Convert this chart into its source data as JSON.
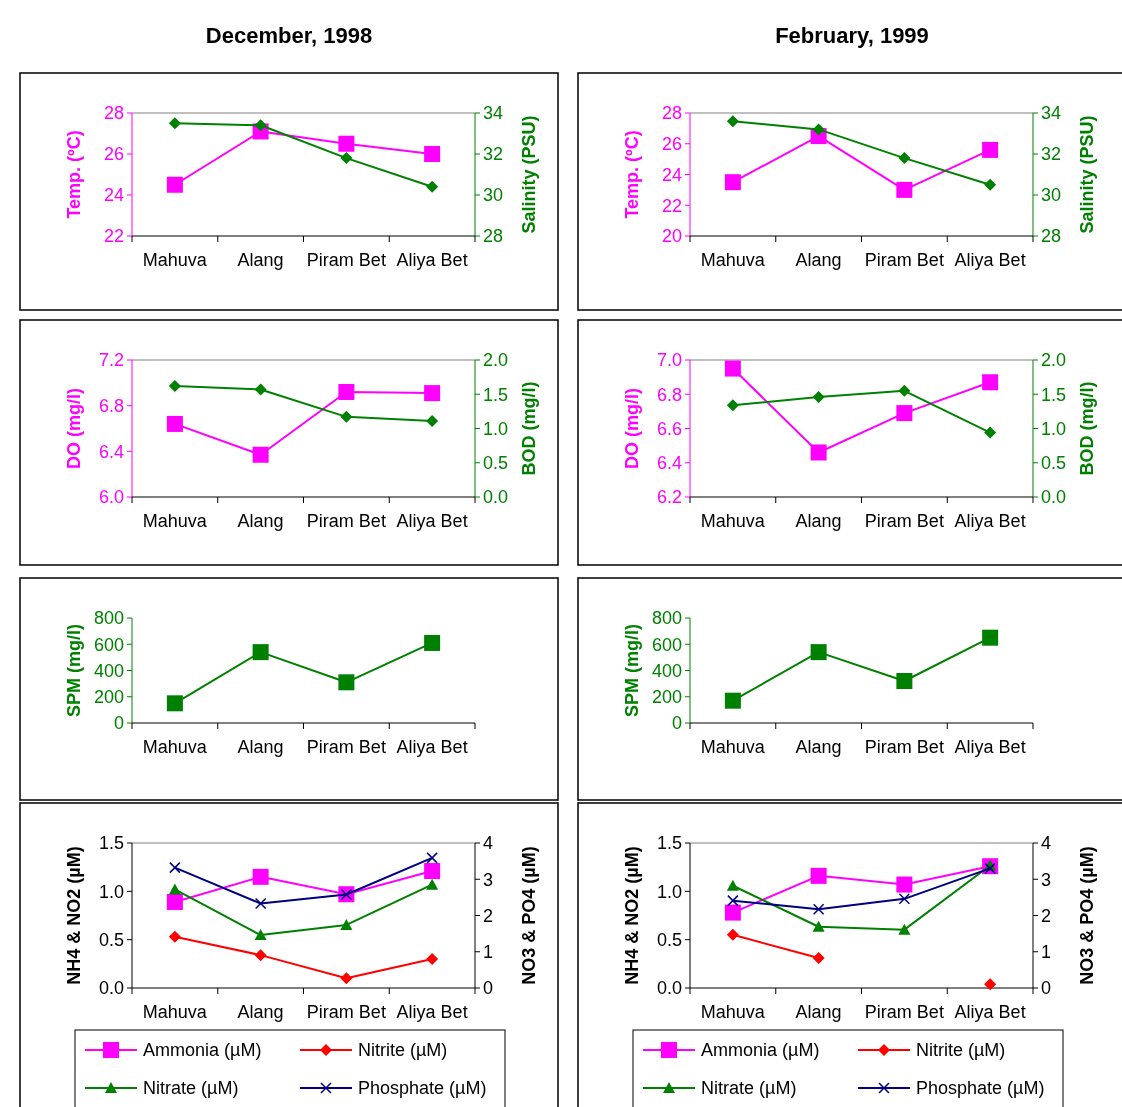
{
  "chart_data": [
    {
      "type": "line",
      "title": "December, 1998",
      "categories": [
        "Mahuva",
        "Alang",
        "Piram Bet",
        "Aliya Bet"
      ],
      "ylabel": "Temp. (ºC)",
      "y2label": "Salinity (PSU)",
      "ylim": [
        22,
        28
      ],
      "yticks": [
        22,
        24,
        26,
        28
      ],
      "y2lim": [
        28,
        34
      ],
      "y2ticks": [
        28,
        30,
        32,
        34
      ],
      "series": [
        {
          "color": "#ff00ff",
          "marker": "square",
          "values": [
            24.5,
            27.1,
            26.5,
            26.0
          ]
        },
        {
          "color": "#008000",
          "marker": "diamond",
          "axis": "y2",
          "values": [
            33.5,
            33.4,
            31.8,
            30.4
          ]
        }
      ]
    },
    {
      "type": "line",
      "title": "February, 1999",
      "categories": [
        "Mahuva",
        "Alang",
        "Piram Bet",
        "Aliya Bet"
      ],
      "ylabel": "Temp. (ºC)",
      "y2label": "Salinity (PSU)",
      "ylim": [
        20,
        28
      ],
      "yticks": [
        20,
        22,
        24,
        26,
        28
      ],
      "y2lim": [
        28,
        34
      ],
      "y2ticks": [
        28,
        30,
        32,
        34
      ],
      "series": [
        {
          "color": "#ff00ff",
          "marker": "square",
          "values": [
            23.5,
            26.5,
            23.0,
            25.6
          ]
        },
        {
          "color": "#008000",
          "marker": "diamond",
          "axis": "y2",
          "values": [
            33.6,
            33.2,
            31.8,
            30.5
          ]
        }
      ]
    },
    {
      "type": "line",
      "categories": [
        "Mahuva",
        "Alang",
        "Piram Bet",
        "Aliya Bet"
      ],
      "ylabel": "DO (mg/l)",
      "y2label": "BOD (mg/l)",
      "ylim": [
        6.0,
        7.2
      ],
      "yticks": [
        {
          "value": 6,
          "label": "6.0"
        },
        6.4,
        6.8,
        7.2
      ],
      "y2lim": [
        0,
        2
      ],
      "y2ticks": [
        {
          "value": 0,
          "label": "0.0"
        },
        0.5,
        {
          "value": 1,
          "label": "1.0"
        },
        1.5,
        {
          "value": 2,
          "label": "2.0"
        }
      ],
      "series": [
        {
          "color": "#ff00ff",
          "marker": "square",
          "values": [
            6.64,
            6.37,
            6.92,
            6.91
          ]
        },
        {
          "color": "#008000",
          "marker": "diamond",
          "axis": "y2",
          "values": [
            1.62,
            1.57,
            1.17,
            1.11
          ]
        }
      ]
    },
    {
      "type": "line",
      "categories": [
        "Mahuva",
        "Alang",
        "Piram Bet",
        "Aliya Bet"
      ],
      "ylabel": "DO (mg/l)",
      "y2label": "BOD (mg/l)",
      "ylim": [
        6.2,
        7.0
      ],
      "yticks": [
        6.2,
        6.4,
        6.6,
        6.8,
        {
          "value": 7,
          "label": "7.0"
        }
      ],
      "y2lim": [
        0,
        2
      ],
      "y2ticks": [
        {
          "value": 0,
          "label": "0.0"
        },
        0.5,
        {
          "value": 1,
          "label": "1.0"
        },
        1.5,
        {
          "value": 2,
          "label": "2.0"
        }
      ],
      "series": [
        {
          "color": "#ff00ff",
          "marker": "square",
          "values": [
            6.95,
            6.46,
            6.69,
            6.87
          ]
        },
        {
          "color": "#008000",
          "marker": "diamond",
          "axis": "y2",
          "values": [
            1.34,
            1.46,
            1.55,
            0.94
          ]
        }
      ]
    },
    {
      "type": "line",
      "categories": [
        "Mahuva",
        "Alang",
        "Piram Bet",
        "Aliya Bet"
      ],
      "ylabel": "SPM (mg/l)",
      "ylim": [
        0,
        800
      ],
      "yticks": [
        0,
        200,
        400,
        600,
        800
      ],
      "series": [
        {
          "color": "#008000",
          "marker": "square",
          "values": [
            150,
            540,
            310,
            610
          ]
        }
      ]
    },
    {
      "type": "line",
      "categories": [
        "Mahuva",
        "Alang",
        "Piram Bet",
        "Aliya Bet"
      ],
      "ylabel": "SPM (mg/l)",
      "ylim": [
        0,
        800
      ],
      "yticks": [
        0,
        200,
        400,
        600,
        800
      ],
      "series": [
        {
          "color": "#008000",
          "marker": "square",
          "values": [
            170,
            540,
            320,
            650
          ]
        }
      ]
    },
    {
      "type": "line",
      "categories": [
        "Mahuva",
        "Alang",
        "Piram Bet",
        "Aliya Bet"
      ],
      "ylabel": "NH4 & NO2 (µM)",
      "y2label": "NO3 & PO4 (µM)",
      "ylim": [
        0,
        1.5
      ],
      "yticks": [
        {
          "value": 0,
          "label": "0.0"
        },
        0.5,
        {
          "value": 1,
          "label": "1.0"
        },
        1.5
      ],
      "y2lim": [
        0,
        4
      ],
      "y2ticks": [
        0,
        1,
        2,
        3,
        4
      ],
      "legend": "bottom",
      "series": [
        {
          "name": "Ammonia (µM)",
          "color": "#ff00ff",
          "marker": "square",
          "values": [
            0.89,
            1.15,
            0.97,
            1.21
          ]
        },
        {
          "name": "Nitrite (µM)",
          "color": "#ff0000",
          "marker": "diamond",
          "values": [
            0.53,
            0.34,
            0.1,
            0.3
          ]
        },
        {
          "name": "Nitrate (µM)",
          "color": "#008000",
          "marker": "triangle",
          "axis": "y2",
          "values": [
            2.72,
            1.46,
            1.74,
            2.85
          ]
        },
        {
          "name": "Phosphate (µM)",
          "color": "#000080",
          "marker": "cross",
          "axis": "y2",
          "values": [
            3.32,
            2.33,
            2.58,
            3.59
          ]
        }
      ]
    },
    {
      "type": "line",
      "categories": [
        "Mahuva",
        "Alang",
        "Piram Bet",
        "Aliya Bet"
      ],
      "ylabel": "NH4 & NO2 (µM)",
      "y2label": "NO3 & PO4 (µM)",
      "ylim": [
        0,
        1.5
      ],
      "yticks": [
        {
          "value": 0,
          "label": "0.0"
        },
        0.5,
        {
          "value": 1,
          "label": "1.0"
        },
        1.5
      ],
      "y2lim": [
        0,
        4
      ],
      "y2ticks": [
        0,
        1,
        2,
        3,
        4
      ],
      "legend": "bottom",
      "series": [
        {
          "name": "Ammonia (µM)",
          "color": "#ff00ff",
          "marker": "square",
          "values": [
            0.78,
            1.16,
            1.07,
            1.26
          ]
        },
        {
          "name": "Nitrite (µM)",
          "color": "#ff0000",
          "marker": "diamond",
          "values": [
            0.55,
            0.31,
            null,
            0.04
          ]
        },
        {
          "name": "Nitrate (µM)",
          "color": "#008000",
          "marker": "triangle",
          "axis": "y2",
          "values": [
            2.82,
            1.69,
            1.61,
            3.38
          ]
        },
        {
          "name": "Phosphate (µM)",
          "color": "#000080",
          "marker": "cross",
          "axis": "y2",
          "values": [
            2.41,
            2.17,
            2.46,
            3.3
          ]
        }
      ]
    }
  ]
}
